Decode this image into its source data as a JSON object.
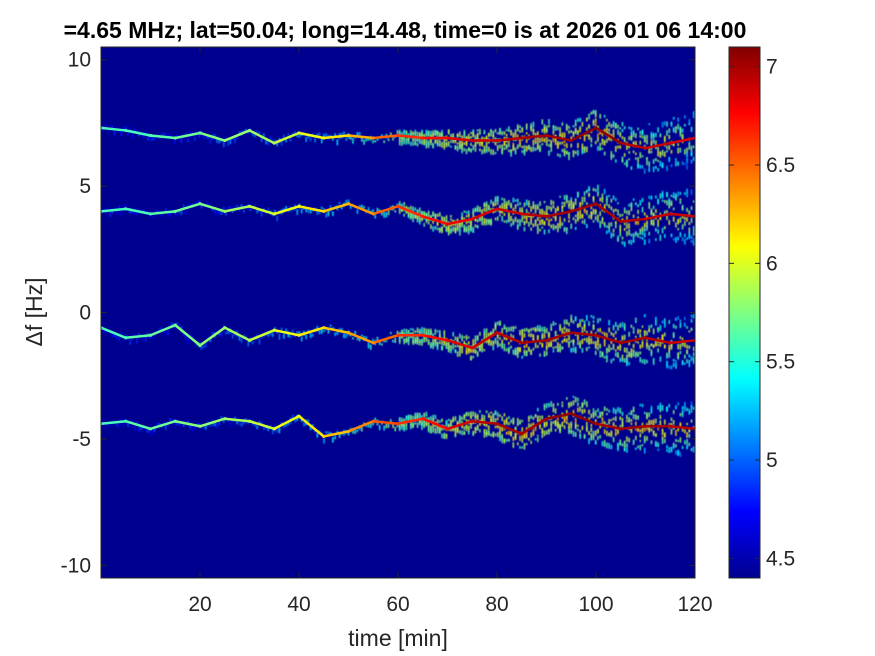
{
  "chart_data": {
    "type": "heatmap",
    "title": "=4.65 MHz;  lat=50.04; long=14.48, time=0 is at 2026 01 06 14:00",
    "xlabel": "time [min]",
    "ylabel": "Δf [Hz]",
    "xlim": [
      0,
      120
    ],
    "ylim": [
      -10.5,
      10.5
    ],
    "xticks": [
      20,
      40,
      60,
      80,
      100,
      120
    ],
    "xtick_labels": [
      "20",
      "40",
      "60",
      "80",
      "100",
      "120"
    ],
    "yticks": [
      -10,
      -5,
      0,
      5,
      10
    ],
    "ytick_labels": [
      "-10",
      "-5",
      "0",
      "5",
      "10"
    ],
    "background_value": 4.4,
    "colorbar": {
      "colormap": "jet",
      "range": [
        4.4,
        7.1
      ],
      "ticks": [
        4.5,
        5,
        5.5,
        6,
        6.5,
        7
      ],
      "tick_labels": [
        "4.5",
        "5",
        "5.5",
        "6",
        "6.5",
        "7"
      ]
    },
    "series": [
      {
        "time": [
          0,
          5,
          10,
          15,
          20,
          25,
          30,
          35,
          40,
          45,
          50,
          55,
          60,
          65,
          70,
          75,
          80,
          85,
          90,
          95,
          100,
          105,
          110,
          115,
          120
        ],
        "df": [
          7.3,
          7.2,
          7.0,
          6.9,
          7.1,
          6.8,
          7.2,
          6.7,
          7.1,
          6.9,
          7.0,
          6.9,
          7.0,
          6.9,
          6.9,
          6.8,
          6.8,
          6.9,
          7.0,
          6.8,
          7.3,
          6.7,
          6.5,
          6.7,
          6.9
        ],
        "peak": [
          5.6,
          5.6,
          5.6,
          5.7,
          5.7,
          5.8,
          5.8,
          5.9,
          6.0,
          6.1,
          6.2,
          6.4,
          6.6,
          6.7,
          6.8,
          6.9,
          6.9,
          7.0,
          7.0,
          7.0,
          7.1,
          7.0,
          6.9,
          6.9,
          6.8
        ]
      },
      {
        "time": [
          0,
          5,
          10,
          15,
          20,
          25,
          30,
          35,
          40,
          45,
          50,
          55,
          60,
          65,
          70,
          75,
          80,
          85,
          90,
          95,
          100,
          105,
          110,
          115,
          120
        ],
        "df": [
          4.0,
          4.1,
          3.9,
          4.0,
          4.3,
          4.0,
          4.2,
          3.9,
          4.2,
          4.0,
          4.3,
          3.9,
          4.2,
          3.8,
          3.5,
          3.7,
          4.1,
          3.9,
          3.8,
          4.0,
          4.3,
          3.6,
          3.7,
          3.9,
          3.8
        ],
        "peak": [
          5.6,
          5.6,
          5.6,
          5.7,
          5.7,
          5.8,
          5.9,
          6.0,
          6.1,
          6.2,
          6.3,
          6.4,
          6.6,
          6.7,
          6.8,
          6.8,
          6.9,
          6.9,
          7.0,
          7.0,
          7.0,
          7.0,
          6.9,
          6.9,
          6.9
        ]
      },
      {
        "time": [
          0,
          5,
          10,
          15,
          20,
          25,
          30,
          35,
          40,
          45,
          50,
          55,
          60,
          65,
          70,
          75,
          80,
          85,
          90,
          95,
          100,
          105,
          110,
          115,
          120
        ],
        "df": [
          -0.6,
          -1.0,
          -0.9,
          -0.5,
          -1.3,
          -0.6,
          -1.1,
          -0.7,
          -0.9,
          -0.6,
          -0.8,
          -1.2,
          -0.9,
          -0.9,
          -1.1,
          -1.4,
          -0.8,
          -1.2,
          -1.1,
          -0.8,
          -0.9,
          -1.2,
          -1.0,
          -1.2,
          -1.1
        ],
        "peak": [
          5.6,
          5.6,
          5.7,
          5.7,
          5.8,
          5.8,
          5.9,
          6.0,
          6.1,
          6.2,
          6.3,
          6.4,
          6.6,
          6.7,
          6.8,
          6.9,
          6.9,
          7.0,
          7.0,
          7.0,
          7.0,
          7.0,
          7.0,
          6.9,
          6.9
        ]
      },
      {
        "time": [
          0,
          5,
          10,
          15,
          20,
          25,
          30,
          35,
          40,
          45,
          50,
          55,
          60,
          65,
          70,
          75,
          80,
          85,
          90,
          95,
          100,
          105,
          110,
          115,
          120
        ],
        "df": [
          -4.4,
          -4.3,
          -4.6,
          -4.3,
          -4.5,
          -4.2,
          -4.3,
          -4.6,
          -4.1,
          -4.9,
          -4.7,
          -4.3,
          -4.4,
          -4.2,
          -4.6,
          -4.3,
          -4.4,
          -4.8,
          -4.2,
          -4.0,
          -4.4,
          -4.6,
          -4.5,
          -4.5,
          -4.6
        ],
        "peak": [
          5.6,
          5.6,
          5.7,
          5.7,
          5.8,
          5.8,
          5.9,
          6.0,
          6.1,
          6.2,
          6.3,
          6.5,
          6.6,
          6.7,
          6.8,
          6.9,
          7.0,
          7.0,
          7.0,
          7.1,
          7.0,
          7.0,
          7.0,
          7.0,
          6.9
        ]
      }
    ]
  }
}
